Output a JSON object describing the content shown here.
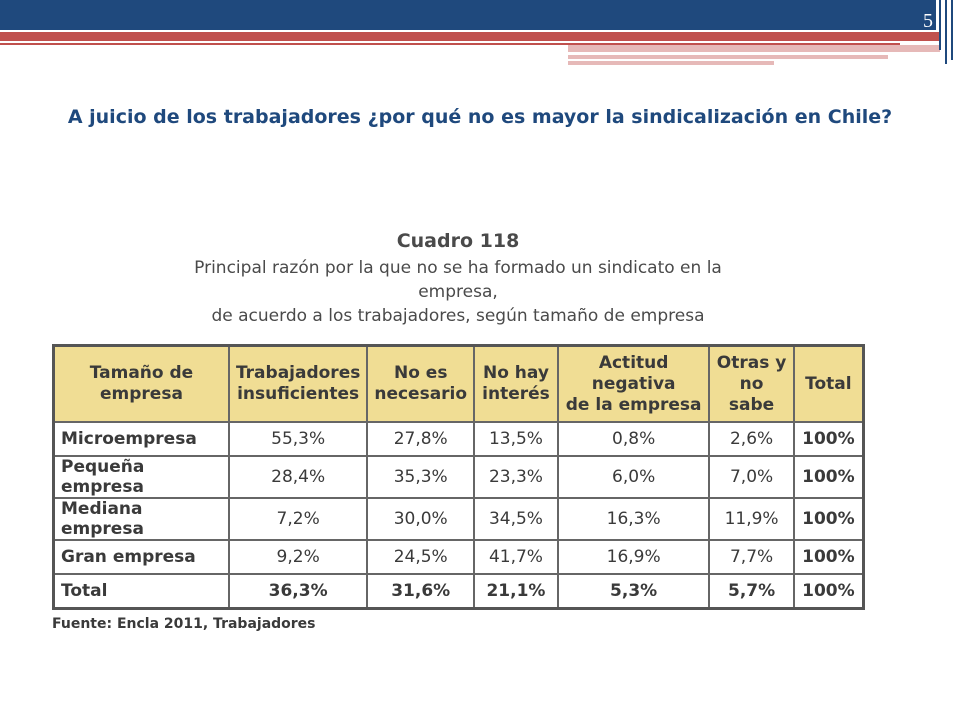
{
  "slide": {
    "number": "5",
    "title": "A juicio de los trabajadores ¿por qué no es mayor la sindicalización en Chile?"
  },
  "table": {
    "caption": "Cuadro 118",
    "subtitle_line1": "Principal razón por la que no se ha formado un sindicato en la empresa,",
    "subtitle_line2": "de acuerdo a los trabajadores, según tamaño de empresa",
    "headers": [
      [
        "Tamaño de",
        "empresa"
      ],
      [
        "Trabajadores",
        "insuficientes"
      ],
      [
        "No es",
        "necesario"
      ],
      [
        "No hay",
        "interés"
      ],
      [
        "Actitud negativa",
        "de la empresa"
      ],
      [
        "Otras y",
        "no sabe"
      ],
      [
        "Total",
        ""
      ]
    ],
    "rows": [
      [
        "Microempresa",
        "55,3%",
        "27,8%",
        "13,5%",
        "0,8%",
        "2,6%",
        "100%"
      ],
      [
        "Pequeña empresa",
        "28,4%",
        "35,3%",
        "23,3%",
        "6,0%",
        "7,0%",
        "100%"
      ],
      [
        "Mediana empresa",
        "7,2%",
        "30,0%",
        "34,5%",
        "16,3%",
        "11,9%",
        "100%"
      ],
      [
        "Gran empresa",
        "9,2%",
        "24,5%",
        "41,7%",
        "16,9%",
        "7,7%",
        "100%"
      ],
      [
        "Total",
        "36,3%",
        "31,6%",
        "21,1%",
        "5,3%",
        "5,7%",
        "100%"
      ]
    ],
    "source": "Fuente: Encla 2011, Trabajadores"
  },
  "colors": {
    "header_blue": "#1f497d",
    "accent_red": "#c0504d",
    "accent_pink": "#e6b9b8",
    "table_header_fill": "#f0dd94"
  }
}
